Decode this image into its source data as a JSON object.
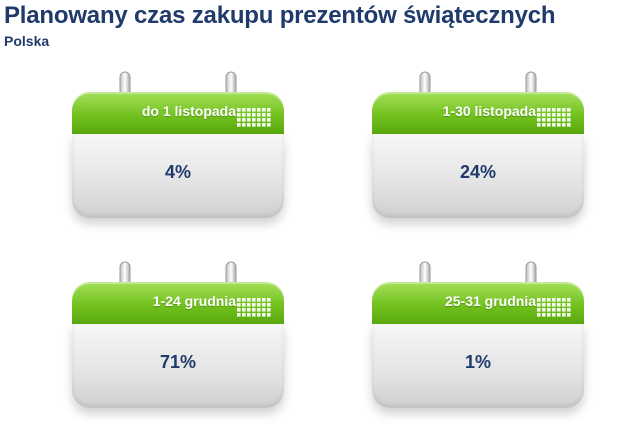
{
  "title": "Planowany czas zakupu prezentów świątecznych",
  "subtitle": "Polska",
  "chart_data": {
    "type": "table",
    "categories": [
      "do 1 listopada",
      "1-30 listopada",
      "1-24 grudnia",
      "25-31 grudnia"
    ],
    "values": [
      4,
      24,
      71,
      1
    ],
    "labels": [
      "4%",
      "24%",
      "71%",
      "1%"
    ],
    "unit": "%"
  }
}
